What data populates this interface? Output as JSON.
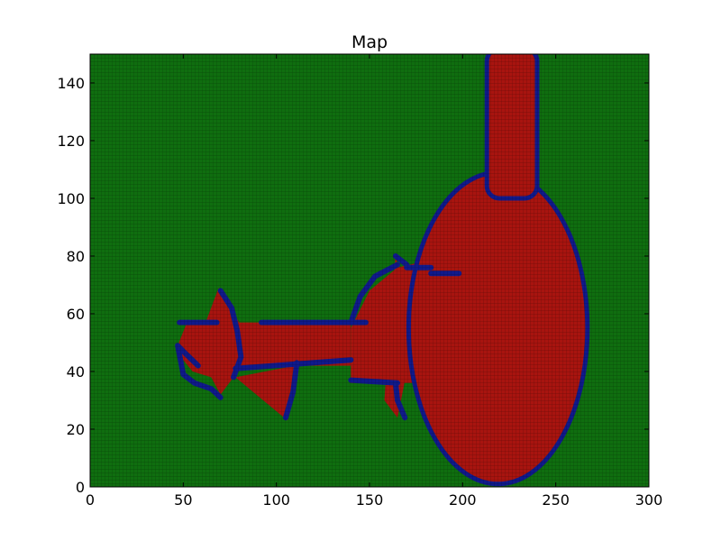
{
  "chart_data": {
    "type": "heatmap",
    "title": "Map",
    "xlabel": "",
    "ylabel": "",
    "xlim": [
      0,
      300
    ],
    "ylim": [
      0,
      150
    ],
    "x_ticks": [
      0,
      50,
      100,
      150,
      200,
      250,
      300
    ],
    "y_ticks": [
      0,
      20,
      40,
      60,
      80,
      100,
      120,
      140
    ],
    "x_tick_labels": [
      "0",
      "50",
      "100",
      "150",
      "200",
      "250",
      "300"
    ],
    "y_tick_labels": [
      "0",
      "20",
      "40",
      "60",
      "80",
      "100",
      "120",
      "140"
    ],
    "classes": [
      {
        "name": "free",
        "color": "#0f6e0f"
      },
      {
        "name": "occupied",
        "color": "#a8140f"
      },
      {
        "name": "boundary",
        "color": "#101a8c"
      }
    ],
    "occupied_regions": [
      {
        "shape": "ellipse",
        "cx": 219,
        "cy": 55,
        "rx": 48,
        "ry": 54
      },
      {
        "shape": "rect",
        "x0": 213,
        "x1": 240,
        "y0": 100,
        "y1": 150
      },
      {
        "shape": "polygon",
        "points": [
          [
            140,
            55
          ],
          [
            150,
            68
          ],
          [
            165,
            76
          ],
          [
            178,
            78
          ],
          [
            190,
            75
          ],
          [
            190,
            36
          ],
          [
            140,
            36
          ]
        ]
      },
      {
        "shape": "polygon",
        "points": [
          [
            160,
            50
          ],
          [
            164,
            80
          ],
          [
            168,
            70
          ],
          [
            170,
            40
          ],
          [
            165,
            24
          ],
          [
            158,
            30
          ]
        ]
      },
      {
        "shape": "rect",
        "x0": 68,
        "x1": 140,
        "y0": 42,
        "y1": 57
      },
      {
        "shape": "polygon",
        "points": [
          [
            47,
            49
          ],
          [
            52,
            57
          ],
          [
            62,
            57
          ],
          [
            69,
            69
          ],
          [
            80,
            57
          ],
          [
            82,
            42
          ],
          [
            77,
            38
          ],
          [
            70,
            32
          ],
          [
            65,
            38
          ],
          [
            55,
            40
          ],
          [
            50,
            44
          ]
        ]
      },
      {
        "shape": "polygon",
        "points": [
          [
            78,
            38
          ],
          [
            106,
            23
          ],
          [
            110,
            42
          ]
        ]
      }
    ],
    "boundary_segments": [
      [
        [
          48,
          57
        ],
        [
          68,
          57
        ]
      ],
      [
        [
          92,
          57
        ],
        [
          148,
          57
        ]
      ],
      [
        [
          78,
          41
        ],
        [
          140,
          44
        ]
      ],
      [
        [
          140,
          37
        ],
        [
          165,
          36
        ]
      ],
      [
        [
          170,
          76
        ],
        [
          183,
          76
        ]
      ],
      [
        [
          183,
          74
        ],
        [
          198,
          74
        ]
      ],
      [
        [
          58,
          42
        ],
        [
          50,
          47
        ],
        [
          47,
          49
        ],
        [
          50,
          39
        ],
        [
          56,
          36
        ],
        [
          65,
          34
        ],
        [
          70,
          31
        ]
      ],
      [
        [
          70,
          68
        ],
        [
          76,
          62
        ],
        [
          79,
          54
        ],
        [
          81,
          45
        ],
        [
          77,
          38
        ]
      ],
      [
        [
          105,
          24
        ],
        [
          109,
          33
        ],
        [
          111,
          43
        ]
      ],
      [
        [
          140,
          57
        ],
        [
          145,
          66
        ],
        [
          153,
          73
        ],
        [
          165,
          77
        ]
      ],
      [
        [
          164,
          80
        ],
        [
          170,
          77
        ]
      ],
      [
        [
          164,
          36
        ],
        [
          165,
          30
        ],
        [
          169,
          24
        ]
      ]
    ]
  }
}
